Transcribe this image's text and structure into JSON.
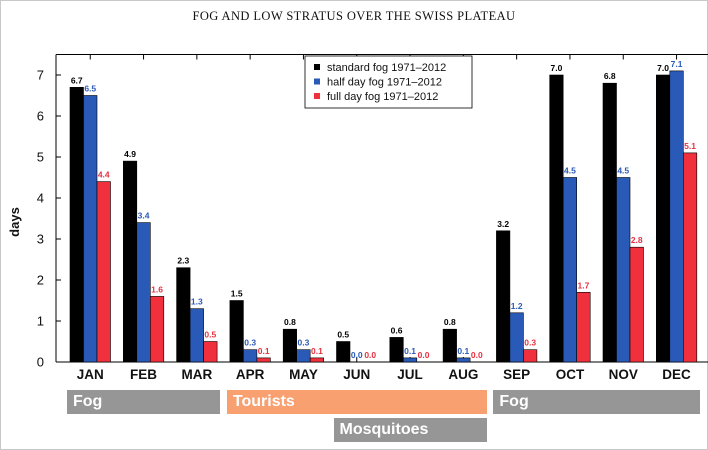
{
  "chart_data": {
    "type": "bar",
    "title": "FOG AND LOW STRATUS OVER THE SWISS PLATEAU",
    "xlabel": "",
    "ylabel": "days",
    "ylim": [
      0,
      7.5
    ],
    "yticks": [
      "0",
      "1",
      "2",
      "3",
      "4",
      "5",
      "6",
      "7"
    ],
    "categories": [
      "JAN",
      "FEB",
      "MAR",
      "APR",
      "MAY",
      "JUN",
      "JUL",
      "AUG",
      "SEP",
      "OCT",
      "NOV",
      "DEC"
    ],
    "series": [
      {
        "name": "standard fog 1971–2012",
        "color": "#000000",
        "label_color": "#000000",
        "values": [
          6.7,
          4.9,
          2.3,
          1.5,
          0.8,
          0.5,
          0.6,
          0.8,
          3.2,
          7.0,
          6.8,
          7.0
        ],
        "labels": [
          "6.7",
          "4.9",
          "2.3",
          "1.5",
          "0.8",
          "0.5",
          "0.6",
          "0.8",
          "3.2",
          "7.0",
          "6.8",
          "7.0"
        ]
      },
      {
        "name": "half day fog 1971–2012",
        "color": "#2a5ab8",
        "label_color": "#2a5ab8",
        "values": [
          6.5,
          3.4,
          1.3,
          0.3,
          0.3,
          0.0,
          0.1,
          0.1,
          1.2,
          4.5,
          4.5,
          7.1
        ],
        "labels": [
          "6.5",
          "3.4",
          "1.3",
          "0.3",
          "0.3",
          "0.0",
          "0.1",
          "0.1",
          "1.2",
          "4.5",
          "4.5",
          "7.1"
        ]
      },
      {
        "name": "full day fog 1971–2012",
        "color": "#f0303c",
        "label_color": "#e83040",
        "values": [
          4.4,
          1.6,
          0.5,
          0.1,
          0.1,
          0.0,
          0.0,
          0.0,
          0.3,
          1.7,
          2.8,
          5.1
        ],
        "labels": [
          "4.4",
          "1.6",
          "0.5",
          "0.1",
          "0.1",
          "0.0",
          "0.0",
          "0.0",
          "0.3",
          "1.7",
          "2.8",
          "5.1"
        ]
      }
    ],
    "legend_position": "top-center",
    "grid": false,
    "annotations": [
      {
        "label": "Fog",
        "from": "JAN",
        "to": "MAR",
        "color": "#969696",
        "row": 1
      },
      {
        "label": "Tourists",
        "from": "APR",
        "to": "AUG",
        "color": "#f8a070",
        "row": 1
      },
      {
        "label": "Fog",
        "from": "SEP",
        "to": "DEC",
        "color": "#969696",
        "row": 1
      },
      {
        "label": "Mosquitoes",
        "from": "JUN",
        "to": "AUG",
        "color": "#969696",
        "row": 2
      }
    ]
  }
}
